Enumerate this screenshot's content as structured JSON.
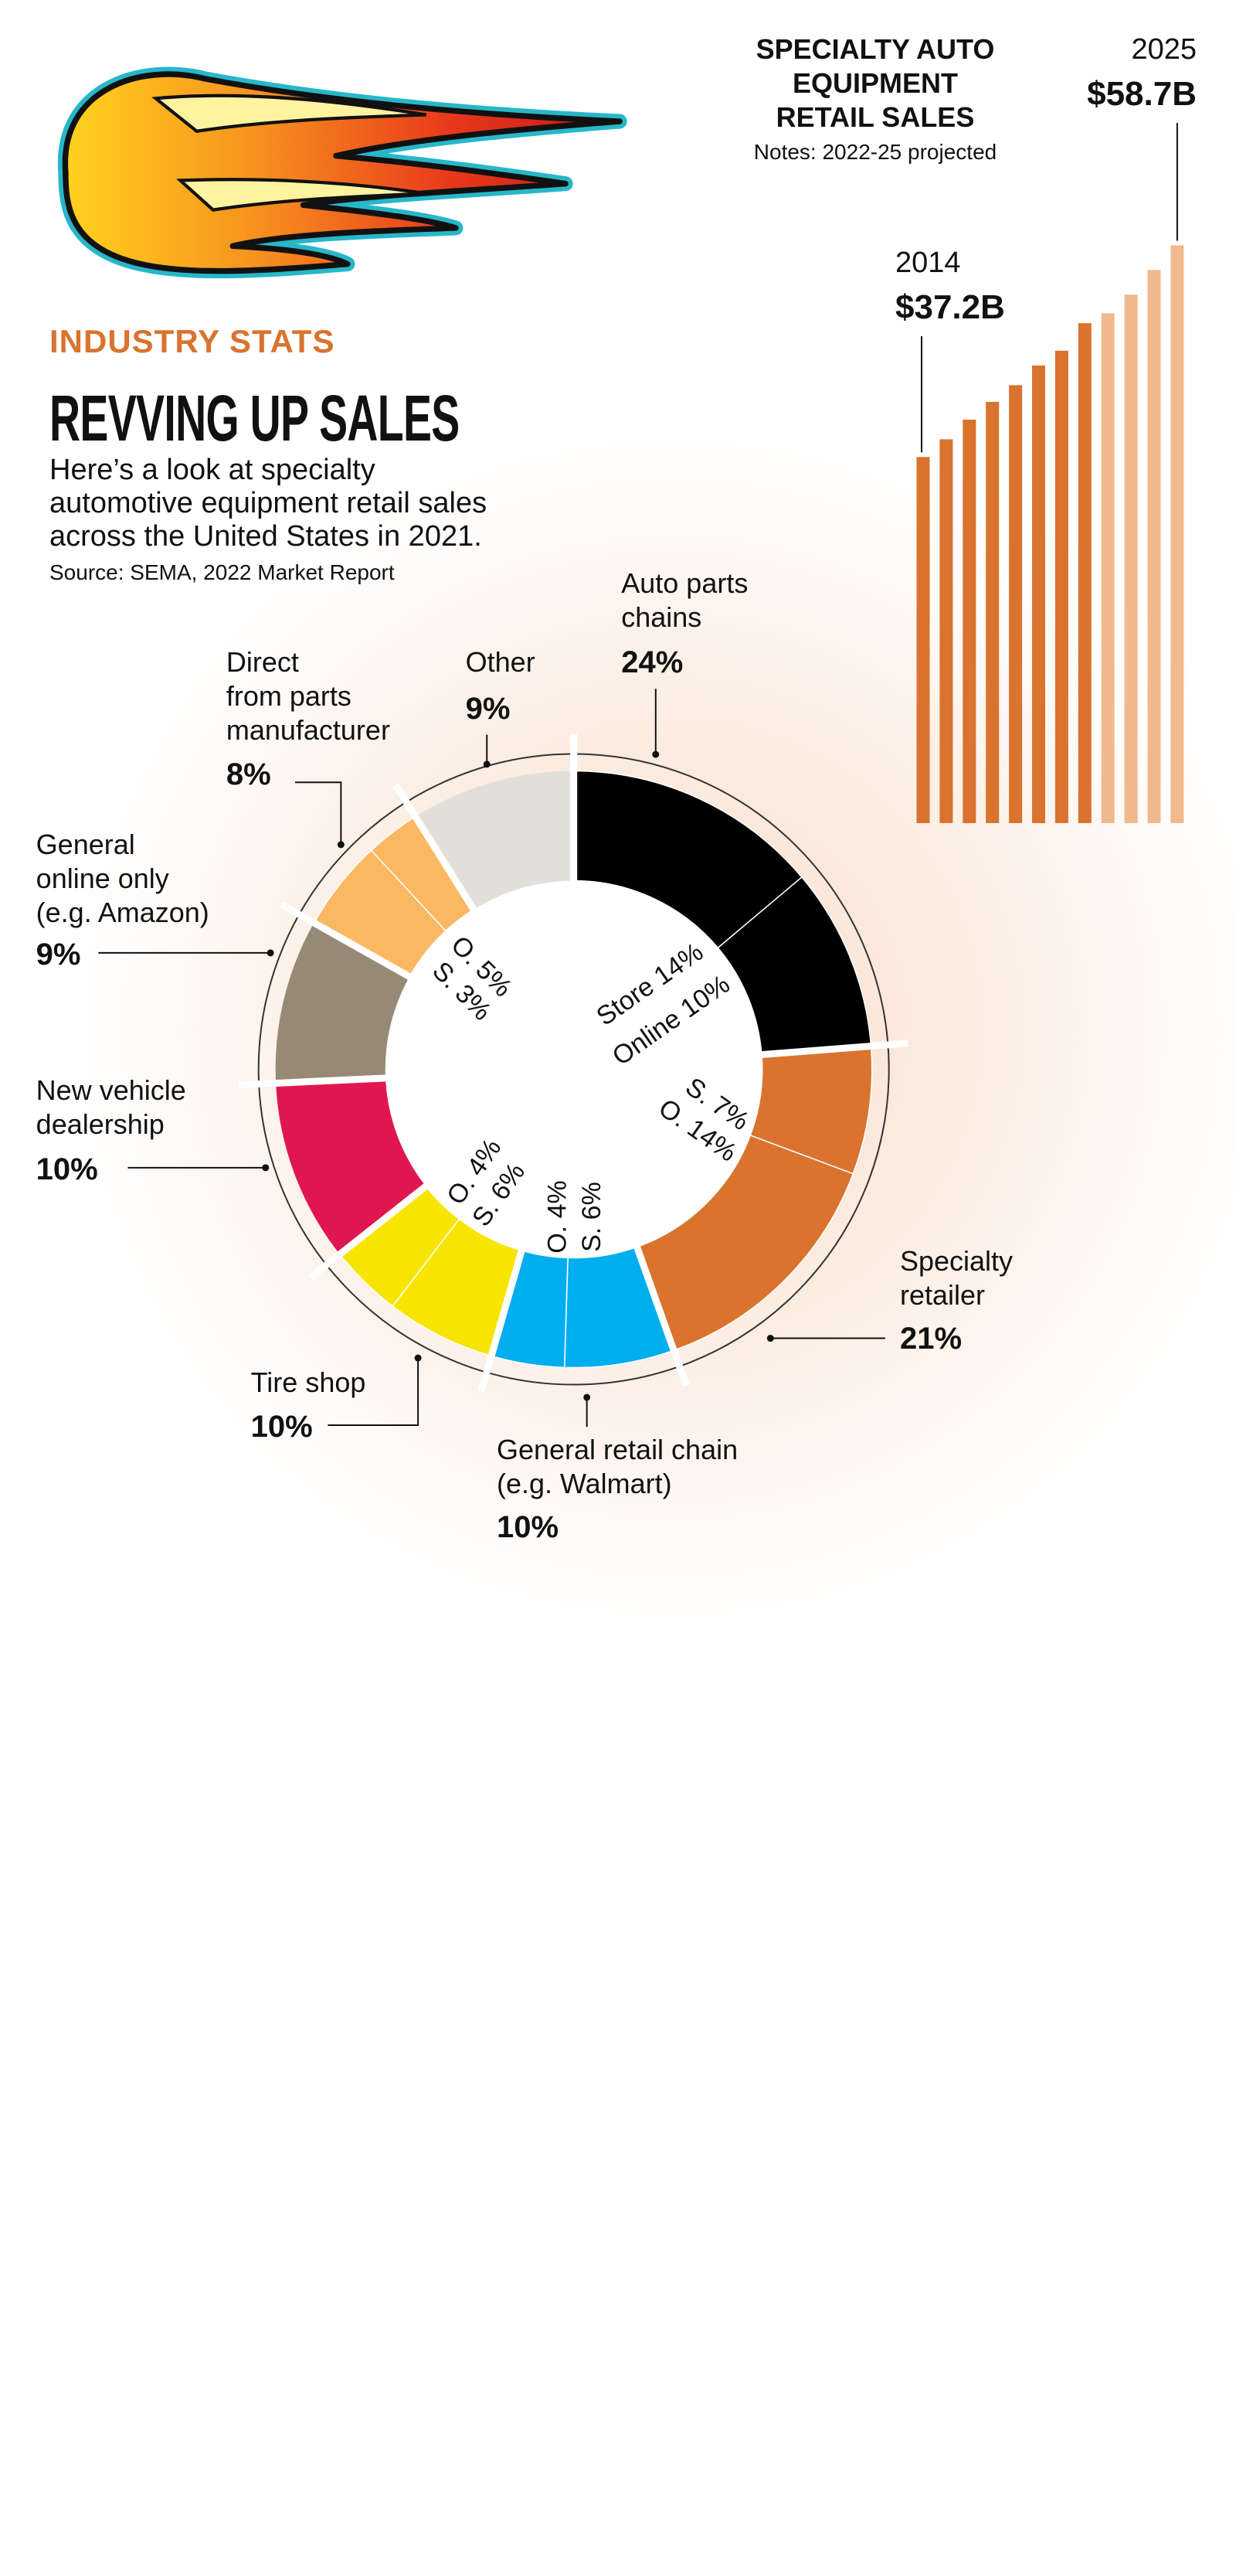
{
  "header": {
    "kicker": "INDUSTRY STATS",
    "title": "REVVING UP SALES",
    "description": "Here’s a look at specialty\nautomotive equipment retail sales\nacross the United States in 2021.",
    "source": "Source: SEMA, 2022 Market Report"
  },
  "chart_data": [
    {
      "type": "donut",
      "categories": [
        "Auto parts\nchains",
        "Specialty\nretailer",
        "General retail chain\n(e.g. Walmart)",
        "Tire shop",
        "New vehicle\ndealership",
        "General\nonline only\n(e.g. Amazon)",
        "Direct\nfrom parts\nmanufacturer",
        "Other"
      ],
      "values": [
        24,
        21,
        10,
        10,
        10,
        9,
        8,
        9
      ],
      "value_labels": [
        "24%",
        "21%",
        "10%",
        "10%",
        "10%",
        "9%",
        "8%",
        "9%"
      ],
      "colors": [
        "#000000",
        "#d9732e",
        "#00aeef",
        "#f7e400",
        "#e0174f",
        "#978a74",
        "#fbb862",
        "#e2dfdb"
      ],
      "sub_values": [
        [
          14,
          10
        ],
        [
          7,
          14
        ],
        [
          6,
          4
        ],
        [
          6,
          4
        ],
        null,
        null,
        [
          5,
          3
        ],
        null
      ],
      "sub_labels": [
        [
          "Store 14%",
          "Online 10%"
        ],
        [
          "S. 7%",
          "O. 14%"
        ],
        [
          "S. 6%",
          "O. 4%"
        ],
        [
          "S. 6%",
          "O. 4%"
        ],
        null,
        null,
        [
          "O. 5%",
          "S. 3%"
        ],
        null
      ]
    },
    {
      "type": "bar",
      "title": "SPECIALTY AUTO\nEQUIPMENT\nRETAIL SALES",
      "note": "Notes: 2022-25 projected",
      "categories": [
        "2014",
        null,
        null,
        null,
        null,
        null,
        null,
        null,
        null,
        null,
        null,
        "2025"
      ],
      "values": [
        37.2,
        39.0,
        41.0,
        42.8,
        44.5,
        46.5,
        48.0,
        50.8,
        51.8,
        53.7,
        56.2,
        58.7
      ],
      "value_labels": [
        "$37.2B",
        null,
        null,
        null,
        null,
        null,
        null,
        null,
        null,
        null,
        null,
        "$58.7B"
      ],
      "colors": [
        "#d9732e",
        "#d9732e",
        "#d9732e",
        "#d9732e",
        "#d9732e",
        "#d9732e",
        "#d9732e",
        "#d9732e",
        "#f0b98e",
        "#f0b98e",
        "#f0b98e",
        "#f0b98e"
      ],
      "ylim": [
        0,
        60
      ]
    }
  ]
}
